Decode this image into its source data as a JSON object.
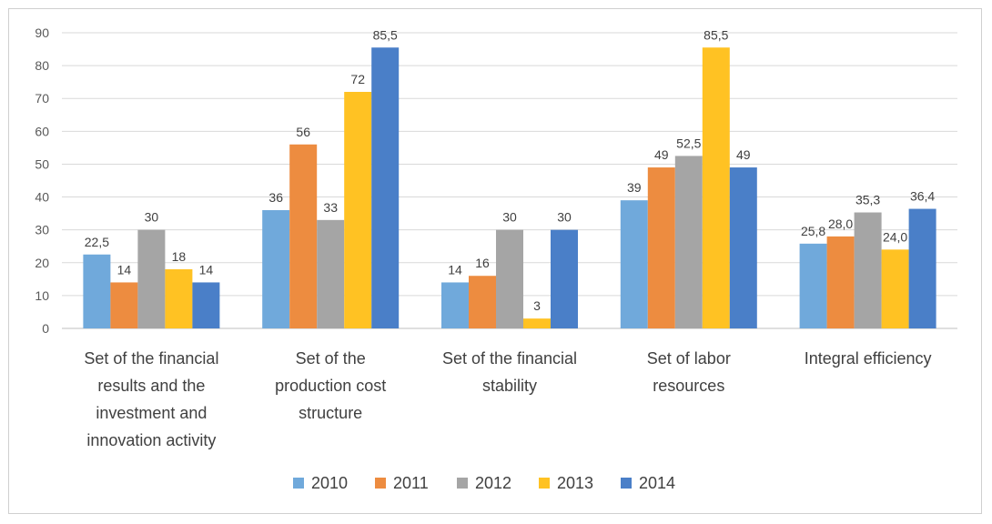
{
  "chart_data": {
    "type": "bar",
    "title": "",
    "xlabel": "",
    "ylabel": "",
    "ylim": [
      0,
      90
    ],
    "yticks": [
      0,
      10,
      20,
      30,
      40,
      50,
      60,
      70,
      80,
      90
    ],
    "grid": true,
    "legend_position": "bottom",
    "categories": [
      [
        "Set of the financial",
        "results and the",
        "investment and",
        "innovation activity"
      ],
      [
        "Set of the",
        "production cost",
        "structure"
      ],
      [
        "Set of the financial",
        "stability"
      ],
      [
        "Set of labor",
        "resources"
      ],
      [
        "Integral efficiency"
      ]
    ],
    "series": [
      {
        "name": "2010",
        "color": "#70A9DB",
        "values": [
          22.5,
          36,
          14,
          39,
          25.8
        ],
        "labels": [
          "22,5",
          "36",
          "14",
          "39",
          "25,8"
        ]
      },
      {
        "name": "2011",
        "color": "#ED8C40",
        "values": [
          14,
          56,
          16,
          49,
          28.0
        ],
        "labels": [
          "14",
          "56",
          "16",
          "49",
          "28,0"
        ]
      },
      {
        "name": "2012",
        "color": "#A5A5A5",
        "values": [
          30,
          33,
          30,
          52.5,
          35.3
        ],
        "labels": [
          "30",
          "33",
          "30",
          "52,5",
          "35,3"
        ]
      },
      {
        "name": "2013",
        "color": "#FFC223",
        "values": [
          18,
          72,
          3,
          85.5,
          24.0
        ],
        "labels": [
          "18",
          "72",
          "3",
          "85,5",
          "24,0"
        ]
      },
      {
        "name": "2014",
        "color": "#4A7FC8",
        "values": [
          14,
          85.5,
          30,
          49,
          36.4
        ],
        "labels": [
          "14",
          "85,5",
          "30",
          "49",
          "36,4"
        ]
      }
    ]
  }
}
